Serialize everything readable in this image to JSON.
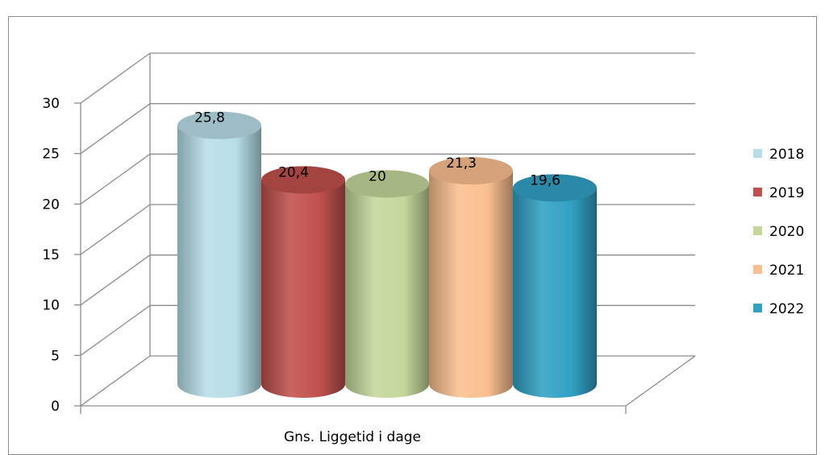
{
  "chart_data": {
    "type": "bar",
    "categories": [
      "Gns. Liggetid i dage"
    ],
    "series": [
      {
        "name": "2018",
        "values": [
          25.8
        ],
        "label": "25,8",
        "color": "#b7dee8"
      },
      {
        "name": "2019",
        "values": [
          20.4
        ],
        "label": "20,4",
        "color": "#c0504d"
      },
      {
        "name": "2020",
        "values": [
          20
        ],
        "label": "20",
        "color": "#c4d79b"
      },
      {
        "name": "2021",
        "values": [
          21.3
        ],
        "label": "21,3",
        "color": "#fabf8f"
      },
      {
        "name": "2022",
        "values": [
          19.6
        ],
        "label": "19,6",
        "color": "#31a1c4"
      }
    ],
    "yticks": [
      "0",
      "5",
      "10",
      "15",
      "20",
      "25",
      "30"
    ],
    "ylim": [
      0,
      30
    ],
    "title": "",
    "xlabel": "",
    "ylabel": "",
    "grid": true,
    "legend": "right",
    "style": "3d-cylinder"
  }
}
